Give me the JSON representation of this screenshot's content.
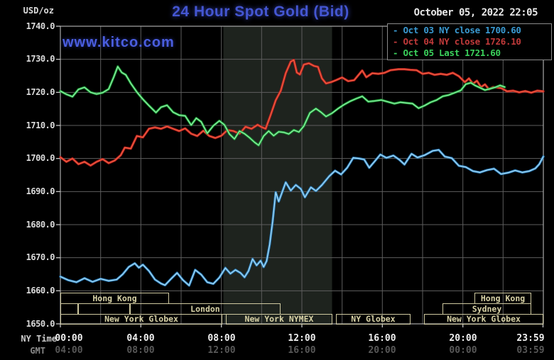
{
  "header": {
    "units_label": "USD/oz",
    "title": "24 Hour Spot Gold (Bid)",
    "datetime": "October 05, 2022 22:05",
    "watermark": "www.kitco.com"
  },
  "legend": {
    "items": [
      {
        "text": "- Oct 03 NY close 1700.60",
        "color": "#3a9ad2"
      },
      {
        "text": "- Oct 04 NY close 1726.10",
        "color": "#c03a3a"
      },
      {
        "text": "- Oct 05 Last 1721.60",
        "color": "#3bd25c"
      }
    ]
  },
  "axis": {
    "ny_time_label": "NY Time",
    "gmt_label": "GMT",
    "tick_hours": [
      0,
      4,
      8,
      12,
      16,
      20,
      23.983
    ],
    "ny_times": [
      "00:00",
      "04:00",
      "08:00",
      "12:00",
      "16:00",
      "20:00",
      "23:59"
    ],
    "gmt_times": [
      "04:00",
      "08:00",
      "12:00",
      "16:00",
      "20:00",
      "00:00",
      "03:59"
    ]
  },
  "sessions": {
    "rows": [
      {
        "boxes": [
          {
            "label": "Hong Kong",
            "start_hour": 0,
            "end_hour": 5.4
          },
          {
            "label": "Hong Kong",
            "start_hour": 20.58,
            "end_hour": 23.4
          }
        ]
      },
      {
        "boxes": [
          {
            "label": "",
            "start_hour": 0,
            "end_hour": 0.88
          },
          {
            "label": "",
            "start_hour": 0.88,
            "end_hour": 3.46
          },
          {
            "label": "London",
            "start_hour": 3.46,
            "end_hour": 10.94
          },
          {
            "label": "Sydney",
            "start_hour": 18.99,
            "end_hour": 23.4
          }
        ]
      },
      {
        "boxes": [
          {
            "label": "New York Globex",
            "start_hour": 0,
            "end_hour": 8.05
          },
          {
            "label": "New York NYMEX",
            "start_hour": 8.22,
            "end_hour": 13.52
          },
          {
            "label": "NY Globex",
            "start_hour": 13.69,
            "end_hour": 17.4
          },
          {
            "label": "New York Globex",
            "start_hour": 18.07,
            "end_hour": 24
          }
        ]
      }
    ]
  },
  "chart_data": {
    "type": "line",
    "title": "24 Hour Spot Gold (Bid)",
    "xlabel": "NY Time (00:00 - 23:59), GMT (04:00 - 03:59)",
    "ylabel": "USD/oz",
    "ylim": [
      1650,
      1740
    ],
    "xlim_hours": [
      0,
      24
    ],
    "y_ticks": [
      1740,
      1730,
      1720,
      1710,
      1700,
      1690,
      1680,
      1670,
      1660,
      1650
    ],
    "grid_x_step_hours": 2,
    "grid_color": "#5e5e5e",
    "border_color": "#a8a8a8",
    "shaded_region_hours": [
      8.1,
      13.5
    ],
    "shaded_region_color": "#1e231e",
    "legend_position": "top-right",
    "series": [
      {
        "name": "Oct 03 NY close",
        "close_value": 1700.6,
        "color": "#2e86c8",
        "core_color": "#a8dcf5",
        "points": [
          [
            0,
            1664.3
          ],
          [
            0.4,
            1663.2
          ],
          [
            0.8,
            1662.6
          ],
          [
            1.2,
            1663.8
          ],
          [
            1.6,
            1662.7
          ],
          [
            2.0,
            1663.6
          ],
          [
            2.4,
            1663.0
          ],
          [
            2.8,
            1663.4
          ],
          [
            3.1,
            1665.0
          ],
          [
            3.4,
            1667.2
          ],
          [
            3.7,
            1668.3
          ],
          [
            3.9,
            1667.0
          ],
          [
            4.1,
            1667.9
          ],
          [
            4.4,
            1666.0
          ],
          [
            4.7,
            1663.4
          ],
          [
            5.0,
            1662.2
          ],
          [
            5.2,
            1661.7
          ],
          [
            5.5,
            1663.6
          ],
          [
            5.8,
            1665.4
          ],
          [
            6.1,
            1663.2
          ],
          [
            6.4,
            1661.6
          ],
          [
            6.7,
            1666.3
          ],
          [
            7.0,
            1664.9
          ],
          [
            7.3,
            1662.6
          ],
          [
            7.6,
            1662.1
          ],
          [
            7.9,
            1664.0
          ],
          [
            8.2,
            1666.9
          ],
          [
            8.45,
            1665.2
          ],
          [
            8.7,
            1666.3
          ],
          [
            8.95,
            1665.4
          ],
          [
            9.15,
            1664.1
          ],
          [
            9.35,
            1666.0
          ],
          [
            9.55,
            1669.6
          ],
          [
            9.75,
            1667.7
          ],
          [
            9.95,
            1669.1
          ],
          [
            10.1,
            1667.2
          ],
          [
            10.25,
            1669.0
          ],
          [
            10.4,
            1674.0
          ],
          [
            10.55,
            1681.0
          ],
          [
            10.7,
            1689.8
          ],
          [
            10.85,
            1687.0
          ],
          [
            11.0,
            1689.5
          ],
          [
            11.2,
            1692.8
          ],
          [
            11.45,
            1690.3
          ],
          [
            11.7,
            1692.0
          ],
          [
            11.95,
            1690.8
          ],
          [
            12.15,
            1688.3
          ],
          [
            12.45,
            1691.3
          ],
          [
            12.7,
            1690.2
          ],
          [
            13.0,
            1692.0
          ],
          [
            13.35,
            1694.6
          ],
          [
            13.65,
            1696.3
          ],
          [
            13.95,
            1695.2
          ],
          [
            14.25,
            1697.2
          ],
          [
            14.55,
            1700.2
          ],
          [
            14.85,
            1700.0
          ],
          [
            15.1,
            1699.7
          ],
          [
            15.35,
            1697.2
          ],
          [
            15.6,
            1699.0
          ],
          [
            15.9,
            1701.2
          ],
          [
            16.2,
            1700.2
          ],
          [
            16.55,
            1700.9
          ],
          [
            16.85,
            1699.6
          ],
          [
            17.1,
            1698.2
          ],
          [
            17.45,
            1701.4
          ],
          [
            17.75,
            1700.3
          ],
          [
            18.1,
            1701.0
          ],
          [
            18.5,
            1702.3
          ],
          [
            18.8,
            1702.6
          ],
          [
            19.1,
            1700.6
          ],
          [
            19.45,
            1700.1
          ],
          [
            19.8,
            1697.8
          ],
          [
            20.15,
            1697.4
          ],
          [
            20.5,
            1696.2
          ],
          [
            20.85,
            1695.8
          ],
          [
            21.2,
            1696.5
          ],
          [
            21.55,
            1696.9
          ],
          [
            21.9,
            1695.3
          ],
          [
            22.25,
            1695.7
          ],
          [
            22.6,
            1696.4
          ],
          [
            22.95,
            1695.8
          ],
          [
            23.3,
            1696.2
          ],
          [
            23.6,
            1697.0
          ],
          [
            23.8,
            1698.3
          ],
          [
            24,
            1700.6
          ]
        ]
      },
      {
        "name": "Oct 04 NY close",
        "close_value": 1726.1,
        "color": "#c41f1f",
        "core_color": "#ef6242",
        "points": [
          [
            0,
            1700.4
          ],
          [
            0.3,
            1699.0
          ],
          [
            0.6,
            1700.0
          ],
          [
            0.9,
            1698.3
          ],
          [
            1.2,
            1699.0
          ],
          [
            1.5,
            1697.9
          ],
          [
            1.8,
            1699.0
          ],
          [
            2.1,
            1699.8
          ],
          [
            2.4,
            1698.6
          ],
          [
            2.7,
            1699.4
          ],
          [
            3.0,
            1701.0
          ],
          [
            3.2,
            1703.3
          ],
          [
            3.5,
            1703.0
          ],
          [
            3.8,
            1706.8
          ],
          [
            4.1,
            1706.4
          ],
          [
            4.4,
            1709.0
          ],
          [
            4.7,
            1709.4
          ],
          [
            5.0,
            1709.0
          ],
          [
            5.3,
            1709.7
          ],
          [
            5.6,
            1709.0
          ],
          [
            5.9,
            1708.3
          ],
          [
            6.2,
            1709.1
          ],
          [
            6.5,
            1707.5
          ],
          [
            6.8,
            1706.8
          ],
          [
            7.1,
            1708.4
          ],
          [
            7.4,
            1706.8
          ],
          [
            7.7,
            1706.2
          ],
          [
            8.0,
            1706.9
          ],
          [
            8.3,
            1708.6
          ],
          [
            8.6,
            1708.3
          ],
          [
            8.9,
            1707.5
          ],
          [
            9.2,
            1709.6
          ],
          [
            9.5,
            1709.0
          ],
          [
            9.8,
            1710.2
          ],
          [
            10.0,
            1709.5
          ],
          [
            10.2,
            1709.0
          ],
          [
            10.45,
            1713.2
          ],
          [
            10.7,
            1717.6
          ],
          [
            10.95,
            1720.5
          ],
          [
            11.2,
            1725.8
          ],
          [
            11.45,
            1729.3
          ],
          [
            11.6,
            1729.8
          ],
          [
            11.75,
            1726.0
          ],
          [
            11.9,
            1725.4
          ],
          [
            12.1,
            1728.4
          ],
          [
            12.35,
            1728.8
          ],
          [
            12.6,
            1728.0
          ],
          [
            12.8,
            1727.7
          ],
          [
            13.0,
            1724.2
          ],
          [
            13.2,
            1722.7
          ],
          [
            13.45,
            1723.1
          ],
          [
            13.7,
            1723.7
          ],
          [
            14.0,
            1724.5
          ],
          [
            14.3,
            1723.4
          ],
          [
            14.6,
            1723.7
          ],
          [
            15.0,
            1726.6
          ],
          [
            15.2,
            1724.6
          ],
          [
            15.5,
            1725.8
          ],
          [
            15.8,
            1725.6
          ],
          [
            16.1,
            1725.9
          ],
          [
            16.4,
            1726.7
          ],
          [
            16.8,
            1727.0
          ],
          [
            17.1,
            1727.0
          ],
          [
            17.4,
            1726.8
          ],
          [
            17.7,
            1726.7
          ],
          [
            18.0,
            1725.6
          ],
          [
            18.3,
            1725.9
          ],
          [
            18.6,
            1725.3
          ],
          [
            18.9,
            1725.6
          ],
          [
            19.2,
            1725.3
          ],
          [
            19.5,
            1725.9
          ],
          [
            19.8,
            1724.9
          ],
          [
            20.1,
            1723.1
          ],
          [
            20.3,
            1724.2
          ],
          [
            20.5,
            1722.6
          ],
          [
            20.7,
            1723.5
          ],
          [
            20.9,
            1721.6
          ],
          [
            21.1,
            1722.4
          ],
          [
            21.3,
            1720.9
          ],
          [
            21.5,
            1721.6
          ],
          [
            21.9,
            1721.3
          ],
          [
            22.2,
            1720.3
          ],
          [
            22.5,
            1720.5
          ],
          [
            22.8,
            1720.0
          ],
          [
            23.1,
            1720.4
          ],
          [
            23.4,
            1719.9
          ],
          [
            23.7,
            1720.5
          ],
          [
            24,
            1720.3
          ]
        ]
      },
      {
        "name": "Oct 05 Last",
        "last_value": 1721.6,
        "color": "#1ca838",
        "core_color": "#90eea8",
        "points": [
          [
            0,
            1720.4
          ],
          [
            0.3,
            1719.4
          ],
          [
            0.6,
            1718.7
          ],
          [
            0.9,
            1720.9
          ],
          [
            1.2,
            1721.5
          ],
          [
            1.5,
            1720.0
          ],
          [
            1.8,
            1719.5
          ],
          [
            2.1,
            1719.9
          ],
          [
            2.4,
            1721.0
          ],
          [
            2.65,
            1724.6
          ],
          [
            2.85,
            1727.8
          ],
          [
            3.05,
            1726.0
          ],
          [
            3.25,
            1725.3
          ],
          [
            3.5,
            1722.7
          ],
          [
            3.8,
            1720.1
          ],
          [
            4.1,
            1717.9
          ],
          [
            4.4,
            1716.0
          ],
          [
            4.75,
            1713.9
          ],
          [
            5.0,
            1715.5
          ],
          [
            5.3,
            1716.1
          ],
          [
            5.6,
            1714.0
          ],
          [
            5.9,
            1713.1
          ],
          [
            6.2,
            1712.9
          ],
          [
            6.5,
            1710.1
          ],
          [
            6.75,
            1712.2
          ],
          [
            7.0,
            1711.1
          ],
          [
            7.3,
            1707.6
          ],
          [
            7.6,
            1709.9
          ],
          [
            7.9,
            1711.4
          ],
          [
            8.15,
            1710.2
          ],
          [
            8.4,
            1707.4
          ],
          [
            8.65,
            1705.9
          ],
          [
            8.9,
            1708.3
          ],
          [
            9.15,
            1707.5
          ],
          [
            9.4,
            1706.3
          ],
          [
            9.65,
            1704.9
          ],
          [
            9.85,
            1704.0
          ],
          [
            10.1,
            1706.8
          ],
          [
            10.35,
            1708.3
          ],
          [
            10.6,
            1706.9
          ],
          [
            10.85,
            1708.1
          ],
          [
            11.1,
            1707.9
          ],
          [
            11.35,
            1707.4
          ],
          [
            11.6,
            1708.6
          ],
          [
            11.85,
            1708.0
          ],
          [
            12.1,
            1709.8
          ],
          [
            12.4,
            1713.8
          ],
          [
            12.7,
            1715.1
          ],
          [
            12.95,
            1714.0
          ],
          [
            13.2,
            1712.7
          ],
          [
            13.5,
            1713.7
          ],
          [
            13.8,
            1715.1
          ],
          [
            14.1,
            1716.3
          ],
          [
            14.4,
            1717.3
          ],
          [
            14.7,
            1718.1
          ],
          [
            15.0,
            1718.8
          ],
          [
            15.3,
            1717.2
          ],
          [
            15.6,
            1717.4
          ],
          [
            15.95,
            1717.7
          ],
          [
            16.3,
            1717.1
          ],
          [
            16.6,
            1716.6
          ],
          [
            16.9,
            1717.0
          ],
          [
            17.2,
            1716.8
          ],
          [
            17.5,
            1716.6
          ],
          [
            17.8,
            1715.2
          ],
          [
            18.1,
            1716.0
          ],
          [
            18.4,
            1717.0
          ],
          [
            18.7,
            1717.7
          ],
          [
            19.0,
            1718.8
          ],
          [
            19.3,
            1719.2
          ],
          [
            19.6,
            1719.9
          ],
          [
            19.9,
            1720.6
          ],
          [
            20.15,
            1722.5
          ],
          [
            20.4,
            1722.9
          ],
          [
            20.6,
            1722.1
          ],
          [
            20.85,
            1721.4
          ],
          [
            21.1,
            1720.7
          ],
          [
            21.35,
            1721.1
          ],
          [
            21.6,
            1721.5
          ],
          [
            21.85,
            1722.1
          ],
          [
            22.08,
            1721.6
          ]
        ]
      }
    ]
  }
}
